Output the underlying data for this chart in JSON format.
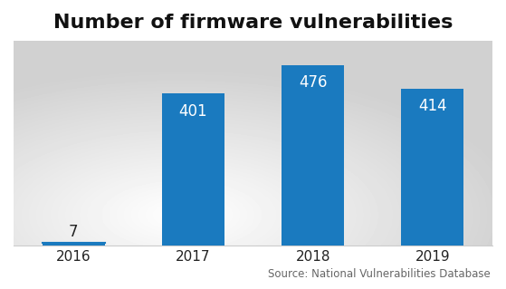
{
  "categories": [
    "2016",
    "2017",
    "2018",
    "2019"
  ],
  "values": [
    7,
    401,
    476,
    414
  ],
  "bar_color": "#1a7abf",
  "title": "Number of firmware vulnerabilities",
  "title_fontsize": 16,
  "label_fontsize": 12,
  "tick_fontsize": 11,
  "source_text": "Source: National Vulnerabilities Database",
  "source_fontsize": 8.5,
  "ylim": [
    0,
    540
  ],
  "bar_width": 0.52,
  "bg_light": "#ffffff",
  "bg_dark": "#d0d0d0",
  "text_color_dark": "#222222",
  "text_color_source": "#666666"
}
